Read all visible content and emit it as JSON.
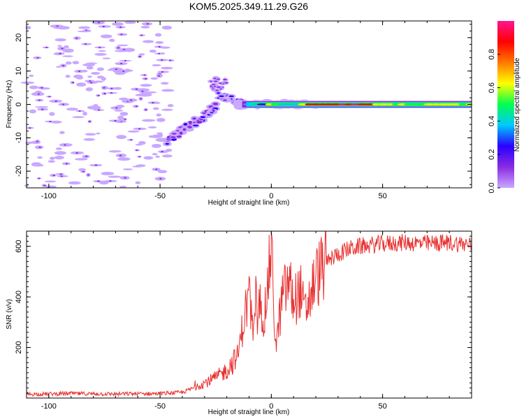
{
  "title": "KOM5.2025.349.11.29.G26",
  "chart_data": [
    {
      "type": "heatmap",
      "xlabel": "Height of straight line (km)",
      "ylabel": "Frequency (Hz)",
      "xlim": [
        -110,
        90
      ],
      "ylim": [
        -25,
        25
      ],
      "xticks": [
        -100,
        -50,
        0,
        50
      ],
      "yticks": [
        -20,
        -10,
        0,
        10,
        20
      ],
      "colorbar": {
        "label": "Normalized spectral amplitude",
        "range": [
          0,
          1
        ],
        "ticks": [
          "0.0",
          "0.2",
          "0.4",
          "0.6",
          "0.8"
        ],
        "colormap": [
          "#ffffff",
          "#c9a8ff",
          "#8a2be2",
          "#2a00ff",
          "#00c8ff",
          "#00ff50",
          "#ffff00",
          "#ff7a00",
          "#ff0000",
          "#ff1493"
        ]
      },
      "features": [
        {
          "name": "background noise",
          "x": [
            -110,
            -45
          ],
          "freq": [
            -25,
            25
          ],
          "amplitude": 0.1
        },
        {
          "name": "rising arm",
          "x": [
            -47,
            -25
          ],
          "freq": [
            -11,
            -1
          ],
          "amplitude": 0.3
        },
        {
          "name": "bump",
          "x": [
            -27,
            -20
          ],
          "freq": [
            4,
            8
          ],
          "amplitude": 0.4
        },
        {
          "name": "carrier",
          "x": [
            -15,
            90
          ],
          "freq": [
            -1,
            1
          ],
          "amplitude": 1.0
        }
      ]
    },
    {
      "type": "line",
      "xlabel": "Height of straight line (km)",
      "ylabel": "SNR (v/v)",
      "xlim": [
        -110,
        90
      ],
      "ylim": [
        0,
        660
      ],
      "xticks": [
        -100,
        -50,
        0,
        50
      ],
      "yticks": [
        200,
        400,
        600
      ],
      "color": "#e83030",
      "series": [
        {
          "name": "SNR",
          "x": [
            -110,
            -90,
            -70,
            -50,
            -40,
            -35,
            -30,
            -25,
            -20,
            -15,
            -12,
            -10,
            -8,
            -5,
            -3,
            0,
            2,
            5,
            8,
            10,
            13,
            15,
            20,
            25,
            30,
            35,
            40,
            50,
            60,
            70,
            80,
            90
          ],
          "y": [
            15,
            18,
            16,
            18,
            22,
            40,
            60,
            80,
            110,
            170,
            330,
            400,
            250,
            370,
            320,
            600,
            200,
            400,
            460,
            380,
            430,
            330,
            480,
            540,
            570,
            590,
            600,
            610,
            615,
            610,
            615,
            605
          ]
        }
      ]
    }
  ]
}
